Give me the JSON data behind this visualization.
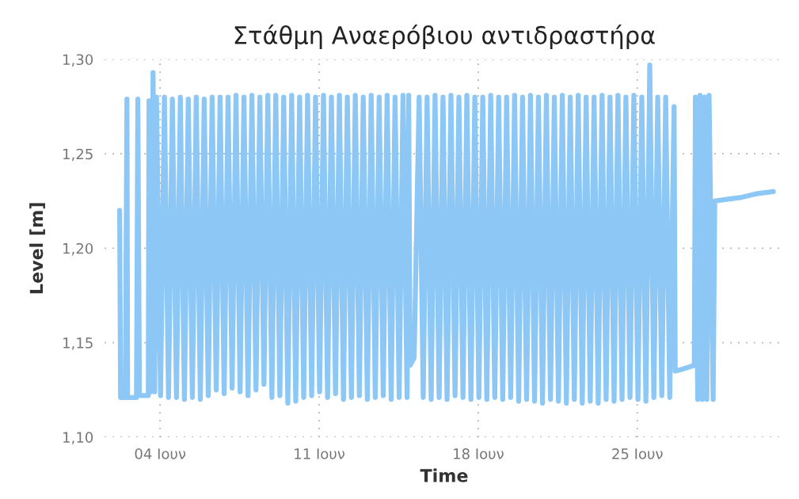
{
  "chart_data": {
    "type": "line",
    "title": "Στάθμη Αναερόβιου αντιδραστήρα",
    "xlabel": "Time",
    "ylabel": "Level [m]",
    "xlim": [
      1.56,
      31.45
    ],
    "xticks": [
      {
        "value": 4,
        "label": "04 Ιουν"
      },
      {
        "value": 11,
        "label": "11 Ιουν"
      },
      {
        "value": 18,
        "label": "18 Ιουν"
      },
      {
        "value": 25,
        "label": "25 Ιουν"
      }
    ],
    "ylim": [
      1.1,
      1.3
    ],
    "yticks": [
      {
        "value": 1.1,
        "label": "1,10"
      },
      {
        "value": 1.15,
        "label": "1,15"
      },
      {
        "value": 1.2,
        "label": "1,20"
      },
      {
        "value": 1.25,
        "label": "1,25"
      },
      {
        "value": 1.3,
        "label": "1,30"
      }
    ],
    "grid": true,
    "marker": "none",
    "line_style": "solid",
    "series": [
      {
        "color": "#8cc7f5",
        "x": [
          2.22,
          2.26,
          2.47,
          2.54,
          2.57,
          2.96,
          3.02,
          3.09,
          3.48,
          3.51,
          3.58,
          3.69,
          3.76,
          3.84,
          4.02,
          4.19,
          4.37,
          4.54,
          4.72,
          4.89,
          5.07,
          5.24,
          5.42,
          5.59,
          5.77,
          5.94,
          6.12,
          6.29,
          6.47,
          6.64,
          6.82,
          6.99,
          7.17,
          7.34,
          7.52,
          7.69,
          7.87,
          8.04,
          8.22,
          8.39,
          8.57,
          8.74,
          8.92,
          9.09,
          9.27,
          9.44,
          9.62,
          9.79,
          9.97,
          10.14,
          10.32,
          10.49,
          10.67,
          10.84,
          11.02,
          11.19,
          11.37,
          11.54,
          11.72,
          11.89,
          12.07,
          12.24,
          12.42,
          12.59,
          12.77,
          12.94,
          13.12,
          13.29,
          13.47,
          13.64,
          13.82,
          13.99,
          14.17,
          14.34,
          14.52,
          14.69,
          14.87,
          14.94,
          15.0,
          15.18,
          15.4,
          15.58,
          15.75,
          15.93,
          16.1,
          16.28,
          16.45,
          16.63,
          16.8,
          16.98,
          17.15,
          17.33,
          17.5,
          17.68,
          17.85,
          18.03,
          18.2,
          18.38,
          18.55,
          18.73,
          18.9,
          19.08,
          19.25,
          19.43,
          19.6,
          19.78,
          19.95,
          20.13,
          20.3,
          20.48,
          20.65,
          20.83,
          21.0,
          21.18,
          21.35,
          21.53,
          21.7,
          21.88,
          22.05,
          22.23,
          22.4,
          22.58,
          22.75,
          22.93,
          23.1,
          23.28,
          23.45,
          23.63,
          23.8,
          23.98,
          24.15,
          24.33,
          24.5,
          24.68,
          24.85,
          25.03,
          25.2,
          25.38,
          25.55,
          25.73,
          25.9,
          26.08,
          26.25,
          26.43,
          26.62,
          26.67,
          27.0,
          27.51,
          27.56,
          27.66,
          27.76,
          27.86,
          27.96,
          28.06,
          28.16,
          28.34,
          28.41,
          29.0,
          29.6,
          30.3,
          30.99
        ],
        "values": [
          1.22,
          1.121,
          1.121,
          1.279,
          1.121,
          1.121,
          1.279,
          1.122,
          1.122,
          1.278,
          1.124,
          1.293,
          1.124,
          1.28,
          1.122,
          1.28,
          1.121,
          1.279,
          1.121,
          1.28,
          1.12,
          1.279,
          1.121,
          1.28,
          1.12,
          1.279,
          1.122,
          1.28,
          1.125,
          1.28,
          1.123,
          1.28,
          1.126,
          1.281,
          1.124,
          1.28,
          1.122,
          1.281,
          1.125,
          1.28,
          1.128,
          1.281,
          1.121,
          1.281,
          1.122,
          1.28,
          1.118,
          1.281,
          1.119,
          1.28,
          1.121,
          1.281,
          1.122,
          1.28,
          1.124,
          1.281,
          1.121,
          1.28,
          1.123,
          1.281,
          1.12,
          1.28,
          1.121,
          1.281,
          1.122,
          1.28,
          1.12,
          1.281,
          1.121,
          1.28,
          1.122,
          1.281,
          1.12,
          1.28,
          1.121,
          1.281,
          1.121,
          1.281,
          1.138,
          1.142,
          1.28,
          1.121,
          1.28,
          1.12,
          1.281,
          1.121,
          1.28,
          1.12,
          1.281,
          1.122,
          1.28,
          1.121,
          1.281,
          1.12,
          1.28,
          1.121,
          1.28,
          1.12,
          1.281,
          1.121,
          1.28,
          1.12,
          1.28,
          1.121,
          1.281,
          1.119,
          1.28,
          1.12,
          1.281,
          1.119,
          1.28,
          1.118,
          1.281,
          1.12,
          1.28,
          1.119,
          1.281,
          1.118,
          1.28,
          1.12,
          1.281,
          1.118,
          1.28,
          1.119,
          1.28,
          1.118,
          1.281,
          1.12,
          1.28,
          1.119,
          1.281,
          1.12,
          1.28,
          1.121,
          1.281,
          1.12,
          1.28,
          1.119,
          1.297,
          1.121,
          1.28,
          1.122,
          1.28,
          1.121,
          1.275,
          1.135,
          1.136,
          1.138,
          1.28,
          1.12,
          1.281,
          1.12,
          1.28,
          1.12,
          1.281,
          1.12,
          1.225,
          1.226,
          1.227,
          1.229,
          1.23
        ]
      }
    ]
  }
}
